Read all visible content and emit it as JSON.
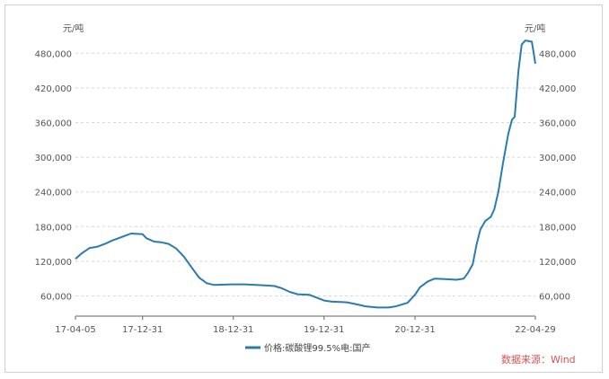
{
  "chart_data": {
    "type": "line",
    "unit_left": "元/吨",
    "unit_right": "元/吨",
    "y_ticks": [
      "60,000",
      "120,000",
      "180,000",
      "240,000",
      "300,000",
      "360,000",
      "420,000",
      "480,000"
    ],
    "y_tick_values": [
      60000,
      120000,
      180000,
      240000,
      300000,
      360000,
      420000,
      480000
    ],
    "ylim": [
      25000,
      510000
    ],
    "x_ticks": [
      "17-04-05",
      "17-12-31",
      "18-12-31",
      "19-12-31",
      "20-12-31",
      "22-04-29"
    ],
    "x_tick_dates": [
      "2017-04-05",
      "2017-12-31",
      "2018-12-31",
      "2019-12-31",
      "2020-12-31",
      "2022-04-29"
    ],
    "xlim": [
      "2017-04-05",
      "2022-04-29"
    ],
    "grid": true,
    "legend_position": "bottom-center",
    "series": [
      {
        "name": "价格:碳酸锂99.5%电:国产",
        "color": "#2b7bad",
        "points": [
          [
            "2017-04-05",
            124000
          ],
          [
            "2017-05-01",
            134000
          ],
          [
            "2017-06-01",
            143000
          ],
          [
            "2017-07-01",
            145000
          ],
          [
            "2017-08-01",
            150000
          ],
          [
            "2017-09-01",
            156000
          ],
          [
            "2017-10-15",
            163000
          ],
          [
            "2017-11-15",
            168000
          ],
          [
            "2017-12-31",
            167000
          ],
          [
            "2018-01-15",
            160000
          ],
          [
            "2018-02-15",
            154000
          ],
          [
            "2018-03-15",
            153000
          ],
          [
            "2018-04-15",
            150000
          ],
          [
            "2018-05-15",
            142000
          ],
          [
            "2018-06-15",
            128000
          ],
          [
            "2018-07-15",
            110000
          ],
          [
            "2018-08-15",
            92000
          ],
          [
            "2018-09-15",
            82000
          ],
          [
            "2018-10-15",
            79000
          ],
          [
            "2018-12-31",
            80000
          ],
          [
            "2019-02-15",
            80000
          ],
          [
            "2019-04-01",
            79000
          ],
          [
            "2019-05-15",
            78000
          ],
          [
            "2019-06-15",
            77000
          ],
          [
            "2019-07-15",
            73000
          ],
          [
            "2019-08-15",
            67000
          ],
          [
            "2019-09-15",
            63000
          ],
          [
            "2019-11-01",
            62000
          ],
          [
            "2019-12-31",
            52000
          ],
          [
            "2020-02-01",
            50000
          ],
          [
            "2020-04-01",
            49000
          ],
          [
            "2020-05-15",
            45000
          ],
          [
            "2020-06-15",
            42000
          ],
          [
            "2020-08-01",
            40000
          ],
          [
            "2020-09-15",
            40000
          ],
          [
            "2020-10-15",
            42000
          ],
          [
            "2020-12-01",
            48000
          ],
          [
            "2020-12-31",
            62000
          ],
          [
            "2021-01-20",
            75000
          ],
          [
            "2021-02-20",
            85000
          ],
          [
            "2021-03-20",
            90000
          ],
          [
            "2021-05-01",
            89000
          ],
          [
            "2021-06-15",
            88000
          ],
          [
            "2021-07-15",
            90000
          ],
          [
            "2021-08-01",
            100000
          ],
          [
            "2021-08-20",
            115000
          ],
          [
            "2021-09-05",
            150000
          ],
          [
            "2021-09-20",
            175000
          ],
          [
            "2021-10-10",
            190000
          ],
          [
            "2021-11-01",
            197000
          ],
          [
            "2021-11-15",
            210000
          ],
          [
            "2021-12-01",
            240000
          ],
          [
            "2021-12-20",
            290000
          ],
          [
            "2022-01-10",
            340000
          ],
          [
            "2022-01-25",
            365000
          ],
          [
            "2022-02-05",
            370000
          ],
          [
            "2022-02-20",
            450000
          ],
          [
            "2022-03-05",
            495000
          ],
          [
            "2022-03-20",
            502000
          ],
          [
            "2022-04-15",
            500000
          ],
          [
            "2022-04-29",
            462000
          ]
        ]
      }
    ],
    "source_note": "数据来源：Wind"
  }
}
